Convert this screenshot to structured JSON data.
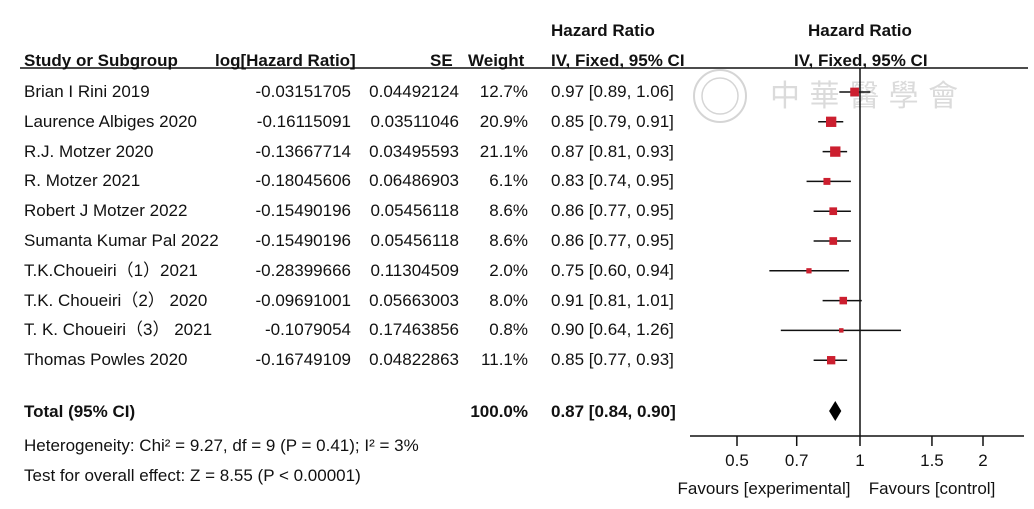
{
  "headers": {
    "hr_top_left": "Hazard Ratio",
    "hr_top_right": "Hazard Ratio",
    "study": "Study or Subgroup",
    "loghr": "log[Hazard Ratio]",
    "se": "SE",
    "weight": "Weight",
    "ci": "IV, Fixed, 95% CI",
    "ci_right": "IV, Fixed, 95% CI"
  },
  "total": {
    "label": "Total (95% CI)",
    "weight": "100.0%",
    "ci": "0.87 [0.84, 0.90]"
  },
  "heterogeneity": "Heterogeneity: Chi² = 9.27, df = 9 (P = 0.41); I² = 3%",
  "overall_effect": "Test for overall effect: Z = 8.55 (P < 0.00001)",
  "favours_left": "Favours [experimental]",
  "favours_right": "Favours [control]",
  "watermark_text": "中 華 醫 學 會",
  "colors": {
    "marker": "#cc1f2f",
    "line": "#111111",
    "diamond": "#000000"
  },
  "chart_data": {
    "type": "forest",
    "scale": "log",
    "xlim": [
      0.4,
      2.3
    ],
    "ticks": [
      0.5,
      0.7,
      1,
      1.5,
      2
    ],
    "tick_labels": [
      "0.5",
      "0.7",
      "1",
      "1.5",
      "2"
    ],
    "rows": [
      {
        "study": "Brian I Rini 2019",
        "loghr": "-0.03151705",
        "se": "0.04492124",
        "weight": "12.7%",
        "ci": "0.97 [0.89, 1.06]",
        "hr": 0.97,
        "lo": 0.89,
        "hi": 1.06,
        "w": 12.7
      },
      {
        "study": "Laurence Albiges 2020",
        "loghr": "-0.16115091",
        "se": "0.03511046",
        "weight": "20.9%",
        "ci": "0.85 [0.79, 0.91]",
        "hr": 0.85,
        "lo": 0.79,
        "hi": 0.91,
        "w": 20.9
      },
      {
        "study": "R.J. Motzer 2020",
        "loghr": "-0.13667714",
        "se": "0.03495593",
        "weight": "21.1%",
        "ci": "0.87 [0.81, 0.93]",
        "hr": 0.87,
        "lo": 0.81,
        "hi": 0.93,
        "w": 21.1
      },
      {
        "study": "R. Motzer 2021",
        "loghr": "-0.18045606",
        "se": "0.06486903",
        "weight": "6.1%",
        "ci": "0.83 [0.74, 0.95]",
        "hr": 0.83,
        "lo": 0.74,
        "hi": 0.95,
        "w": 6.1
      },
      {
        "study": "Robert J Motzer 2022",
        "loghr": "-0.15490196",
        "se": "0.05456118",
        "weight": "8.6%",
        "ci": "0.86 [0.77, 0.95]",
        "hr": 0.86,
        "lo": 0.77,
        "hi": 0.95,
        "w": 8.6
      },
      {
        "study": "Sumanta Kumar Pal  2022",
        "loghr": "-0.15490196",
        "se": "0.05456118",
        "weight": "8.6%",
        "ci": "0.86 [0.77, 0.95]",
        "hr": 0.86,
        "lo": 0.77,
        "hi": 0.95,
        "w": 8.6
      },
      {
        "study": "T.K.Choueiri（1）2021",
        "loghr": "-0.28399666",
        "se": "0.11304509",
        "weight": "2.0%",
        "ci": "0.75 [0.60, 0.94]",
        "hr": 0.75,
        "lo": 0.6,
        "hi": 0.94,
        "w": 2.0
      },
      {
        "study": "T.K. Choueiri（2） 2020",
        "loghr": "-0.09691001",
        "se": "0.05663003",
        "weight": "8.0%",
        "ci": "0.91 [0.81, 1.01]",
        "hr": 0.91,
        "lo": 0.81,
        "hi": 1.01,
        "w": 8.0
      },
      {
        "study": "T. K. Choueiri（3） 2021",
        "loghr": "-0.1079054",
        "se": "0.17463856",
        "weight": "0.8%",
        "ci": "0.90 [0.64, 1.26]",
        "hr": 0.9,
        "lo": 0.64,
        "hi": 1.26,
        "w": 0.8
      },
      {
        "study": "Thomas Powles  2020",
        "loghr": "-0.16749109",
        "se": "0.04822863",
        "weight": "11.1%",
        "ci": "0.85 [0.77, 0.93]",
        "hr": 0.85,
        "lo": 0.77,
        "hi": 0.93,
        "w": 11.1
      }
    ],
    "pooled": {
      "hr": 0.87,
      "lo": 0.84,
      "hi": 0.9
    }
  }
}
